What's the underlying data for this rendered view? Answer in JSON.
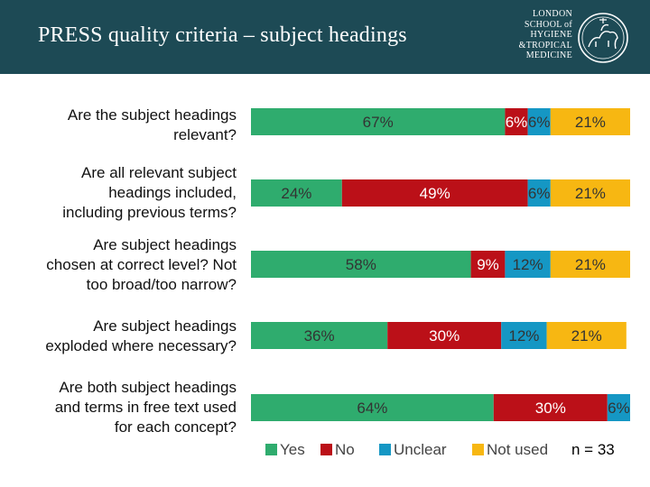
{
  "header": {
    "title": "PRESS quality criteria – subject headings",
    "logo_lines": [
      "LONDON",
      "SCHOOL of",
      "HYGIENE",
      "&TROPICAL",
      "MEDICINE"
    ]
  },
  "colors": {
    "header_bg": "#1d4a55",
    "Yes": "#2fac6e",
    "No": "#bb1018",
    "Unclear": "#1597c4",
    "Not used": "#f7b712"
  },
  "chart_data": {
    "type": "bar",
    "orientation": "horizontal",
    "stacked": true,
    "categories": [
      [
        "Are the subject headings",
        "relevant?"
      ],
      [
        "Are all relevant subject",
        "headings included,",
        "including previous terms?"
      ],
      [
        "Are subject headings",
        "chosen at correct level? Not",
        "too broad/too narrow?"
      ],
      [
        "Are subject headings",
        "exploded where necessary?"
      ],
      [
        "Are both subject headings",
        "and terms in free text used",
        "for each concept?"
      ]
    ],
    "series": [
      {
        "name": "Yes",
        "values": [
          67,
          24,
          58,
          36,
          64
        ]
      },
      {
        "name": "No",
        "values": [
          6,
          49,
          9,
          30,
          30
        ]
      },
      {
        "name": "Unclear",
        "values": [
          6,
          6,
          12,
          12,
          6
        ]
      },
      {
        "name": "Not used",
        "values": [
          21,
          21,
          21,
          21,
          0
        ]
      }
    ],
    "data_labels": [
      [
        "67%",
        "6%",
        "6%",
        "21%"
      ],
      [
        "24%",
        "49%",
        "6%",
        "21%"
      ],
      [
        "58%",
        "9%",
        "12%",
        "21%"
      ],
      [
        "36%",
        "30%",
        "12%",
        "21%"
      ],
      [
        "64%",
        "30%",
        "6%",
        ""
      ]
    ],
    "legend_position": "bottom",
    "note": "n = 33"
  }
}
